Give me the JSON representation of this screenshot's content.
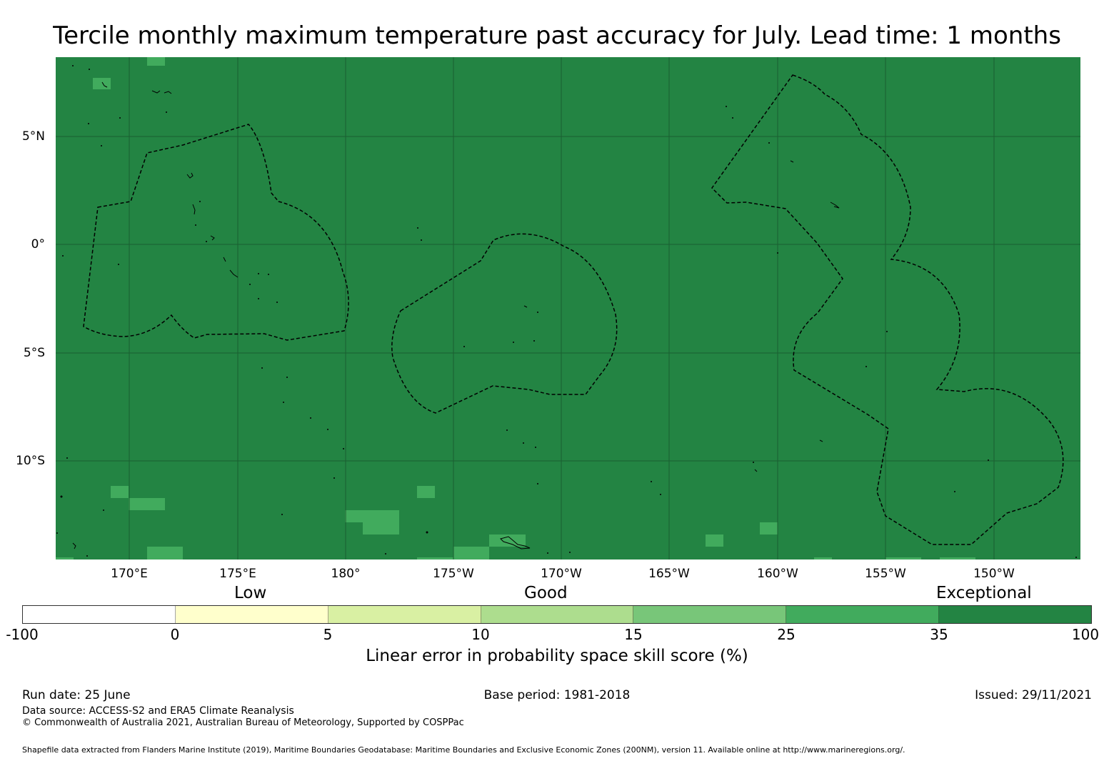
{
  "title": "Tercile monthly maximum temperature past accuracy for July. Lead time: 1 months",
  "map": {
    "background_color": "#238443",
    "lat_labels": [
      "5°N",
      "0°",
      "5°S",
      "10°S"
    ],
    "lon_labels": [
      "170°E",
      "175°E",
      "180°",
      "175°W",
      "170°W",
      "165°W",
      "160°W",
      "155°W",
      "150°W"
    ]
  },
  "legend": {
    "categories": [
      "Low",
      "Good",
      "Exceptional"
    ],
    "ticks": [
      "-100",
      "0",
      "5",
      "10",
      "15",
      "25",
      "35",
      "100"
    ],
    "colors": [
      "#ffffff",
      "#ffffcc",
      "#d9f0a3",
      "#addd8e",
      "#78c679",
      "#41ab5d",
      "#238443"
    ],
    "label": "Linear error in probability space skill score (%)"
  },
  "footer": {
    "run_date": "Run date: 25 June",
    "base_period": "Base period: 1981-2018",
    "issued": "Issued: 29/11/2021",
    "data_source": "Data source: ACCESS-S2 and ERA5 Climate Reanalysis",
    "copyright": "© Commonwealth of Australia 2021, Australian Bureau of Meteorology, Supported by COSPPac",
    "shapefile": "Shapefile data extracted from Flanders Marine Institute (2019), Maritime Boundaries Geodatabase: Maritime Boundaries and Exclusive Economic Zones (200NM), version 11. Available online at http://www.marineregions.org/."
  }
}
